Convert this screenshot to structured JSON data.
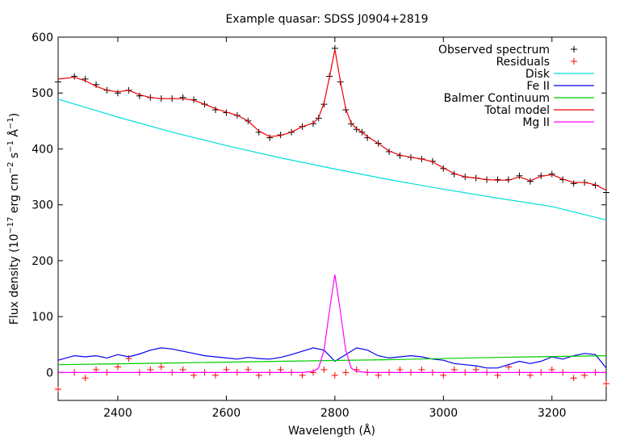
{
  "chart_data": {
    "type": "line",
    "title": "Example quasar: SDSS J0904+2819",
    "xlabel": "Wavelength (Å)",
    "ylabel": {
      "prefix": "Flux density (10",
      "exp1": "−17",
      "mid1": " erg cm",
      "exp2": "−2",
      "mid2": " s",
      "exp3": "−1",
      "mid3": " Å",
      "exp4": "−1",
      "suffix": ")"
    },
    "xlim": [
      2290,
      3300
    ],
    "ylim": [
      -50,
      600
    ],
    "xticks": [
      2400,
      2600,
      2800,
      3000,
      3200
    ],
    "yticks": [
      0,
      100,
      200,
      300,
      400,
      500,
      600
    ],
    "legend_position": "top-right",
    "series": [
      {
        "name": "Observed spectrum",
        "style": "points",
        "marker": "plus",
        "color": "#000000",
        "x": [
          2290,
          2320,
          2340,
          2360,
          2380,
          2400,
          2420,
          2440,
          2460,
          2480,
          2500,
          2520,
          2540,
          2560,
          2580,
          2600,
          2620,
          2640,
          2660,
          2680,
          2700,
          2720,
          2740,
          2760,
          2770,
          2780,
          2790,
          2800,
          2810,
          2820,
          2830,
          2840,
          2850,
          2860,
          2880,
          2900,
          2920,
          2940,
          2960,
          2980,
          3000,
          3020,
          3040,
          3060,
          3080,
          3100,
          3120,
          3140,
          3160,
          3180,
          3200,
          3220,
          3240,
          3260,
          3280,
          3300
        ],
        "y": [
          520,
          530,
          525,
          515,
          505,
          500,
          505,
          495,
          492,
          490,
          490,
          492,
          488,
          480,
          470,
          465,
          460,
          450,
          430,
          420,
          425,
          430,
          440,
          445,
          455,
          480,
          530,
          580,
          520,
          470,
          445,
          435,
          430,
          420,
          410,
          395,
          388,
          385,
          382,
          378,
          365,
          355,
          350,
          348,
          345,
          345,
          345,
          352,
          342,
          352,
          355,
          345,
          338,
          340,
          335,
          322
        ]
      },
      {
        "name": "Residuals",
        "style": "points",
        "marker": "plus",
        "color": "#ff0000",
        "x": [
          2290,
          2320,
          2340,
          2360,
          2380,
          2400,
          2420,
          2440,
          2460,
          2480,
          2500,
          2520,
          2540,
          2560,
          2580,
          2600,
          2620,
          2640,
          2660,
          2680,
          2700,
          2720,
          2740,
          2760,
          2780,
          2800,
          2820,
          2840,
          2860,
          2880,
          2900,
          2920,
          2940,
          2960,
          2980,
          3000,
          3020,
          3040,
          3060,
          3080,
          3100,
          3120,
          3140,
          3160,
          3180,
          3200,
          3220,
          3240,
          3260,
          3280,
          3300
        ],
        "y": [
          -30,
          0,
          -10,
          5,
          0,
          10,
          25,
          0,
          5,
          10,
          0,
          5,
          -5,
          0,
          -5,
          5,
          0,
          5,
          -5,
          0,
          5,
          0,
          -5,
          0,
          5,
          -5,
          0,
          5,
          0,
          -5,
          0,
          5,
          0,
          5,
          0,
          -5,
          5,
          0,
          5,
          0,
          -5,
          10,
          0,
          -5,
          0,
          5,
          0,
          -10,
          -5,
          0,
          -20
        ]
      },
      {
        "name": "Disk",
        "style": "line",
        "color": "#00dddd",
        "x": [
          2290,
          2400,
          2500,
          2600,
          2700,
          2800,
          2900,
          3000,
          3100,
          3200,
          3300
        ],
        "y": [
          489,
          457,
          430,
          406,
          384,
          364,
          345,
          328,
          312,
          297,
          273
        ]
      },
      {
        "name": "Fe II",
        "style": "line",
        "color": "#0000ee",
        "x": [
          2290,
          2320,
          2340,
          2360,
          2380,
          2400,
          2420,
          2440,
          2460,
          2480,
          2500,
          2520,
          2540,
          2560,
          2580,
          2600,
          2620,
          2640,
          2660,
          2680,
          2700,
          2720,
          2740,
          2760,
          2780,
          2800,
          2820,
          2840,
          2860,
          2880,
          2900,
          2920,
          2940,
          2960,
          2980,
          3000,
          3020,
          3040,
          3060,
          3080,
          3100,
          3120,
          3140,
          3160,
          3180,
          3200,
          3220,
          3240,
          3260,
          3280,
          3300
        ],
        "y": [
          22,
          30,
          28,
          30,
          26,
          32,
          28,
          33,
          40,
          44,
          42,
          38,
          34,
          30,
          28,
          26,
          24,
          27,
          25,
          24,
          27,
          32,
          38,
          44,
          40,
          20,
          32,
          44,
          40,
          30,
          26,
          28,
          30,
          28,
          24,
          22,
          16,
          14,
          12,
          8,
          8,
          14,
          20,
          16,
          20,
          28,
          24,
          30,
          34,
          32,
          8
        ]
      },
      {
        "name": "Balmer Continuum",
        "style": "line",
        "color": "#00cc00",
        "x": [
          2290,
          2500,
          2700,
          2900,
          3100,
          3300
        ],
        "y": [
          14,
          17,
          20,
          23,
          27,
          30
        ]
      },
      {
        "name": "Total model",
        "style": "line",
        "color": "#ee0000",
        "x": [
          2290,
          2320,
          2340,
          2360,
          2380,
          2400,
          2420,
          2440,
          2460,
          2480,
          2500,
          2520,
          2540,
          2560,
          2580,
          2600,
          2620,
          2640,
          2660,
          2680,
          2700,
          2720,
          2740,
          2760,
          2770,
          2780,
          2790,
          2800,
          2810,
          2820,
          2830,
          2840,
          2850,
          2860,
          2880,
          2900,
          2920,
          2940,
          2960,
          2980,
          3000,
          3020,
          3040,
          3060,
          3080,
          3100,
          3120,
          3140,
          3160,
          3180,
          3200,
          3220,
          3240,
          3260,
          3280,
          3300
        ],
        "y": [
          525,
          528,
          522,
          512,
          505,
          502,
          505,
          497,
          492,
          490,
          490,
          490,
          487,
          480,
          472,
          466,
          460,
          450,
          432,
          422,
          424,
          430,
          440,
          446,
          456,
          482,
          528,
          578,
          522,
          472,
          446,
          436,
          430,
          422,
          410,
          396,
          389,
          385,
          382,
          377,
          366,
          356,
          350,
          348,
          345,
          344,
          344,
          350,
          343,
          351,
          354,
          346,
          340,
          340,
          336,
          326
        ]
      },
      {
        "name": "Mg II",
        "style": "line",
        "color": "#ff00ff",
        "x": [
          2290,
          2700,
          2740,
          2760,
          2770,
          2780,
          2790,
          2800,
          2810,
          2820,
          2830,
          2840,
          2860,
          2900,
          3300
        ],
        "y": [
          0,
          0,
          0,
          2,
          8,
          40,
          110,
          175,
          110,
          40,
          8,
          2,
          0,
          0,
          0
        ]
      }
    ]
  }
}
